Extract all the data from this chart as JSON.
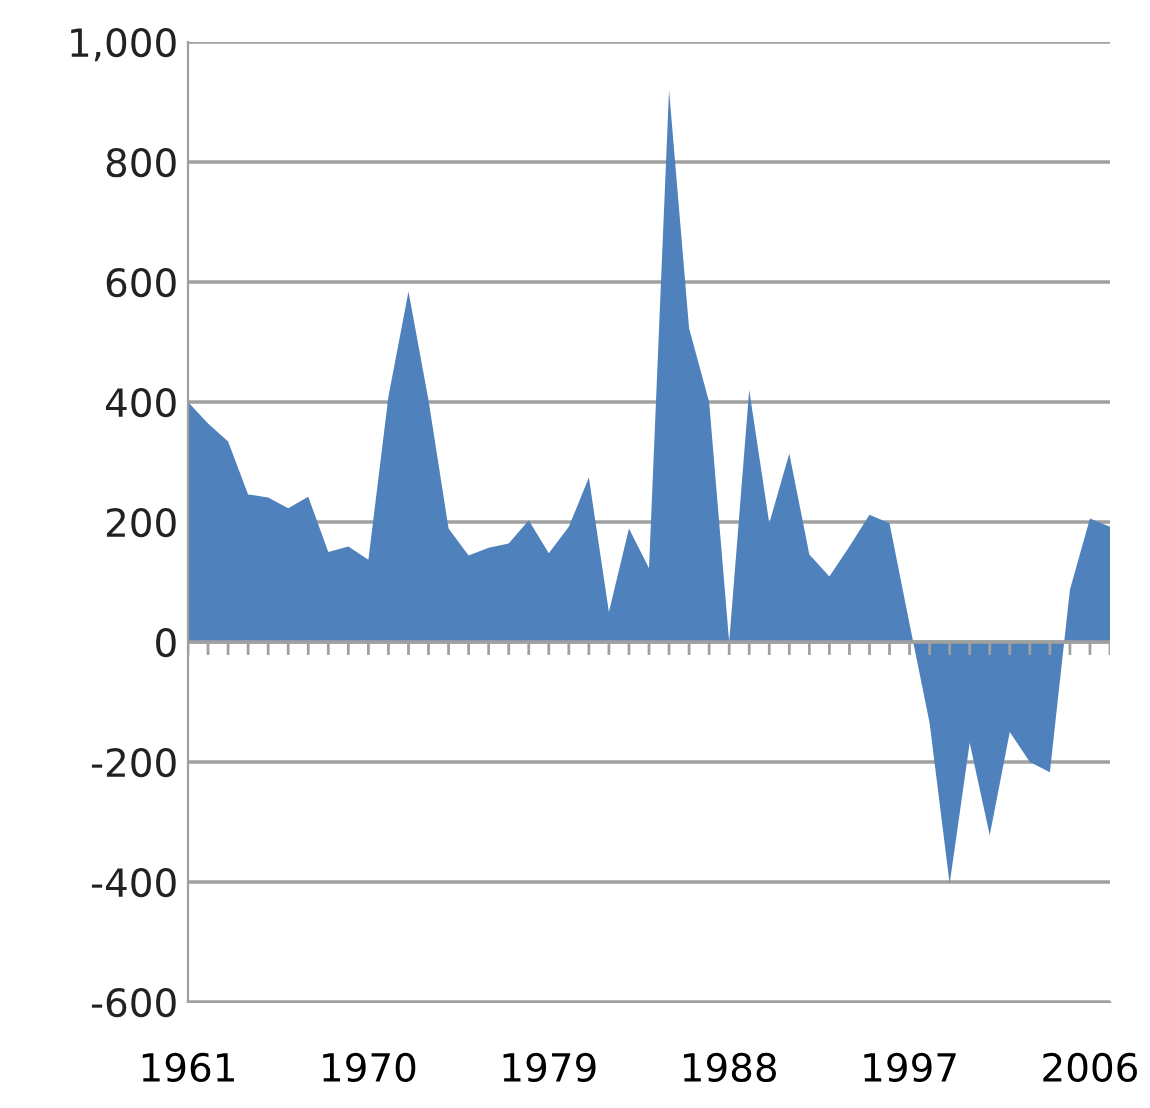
{
  "chart_data": {
    "type": "area",
    "categories": [
      "1961",
      null,
      null,
      null,
      null,
      null,
      null,
      null,
      null,
      "1970",
      null,
      null,
      null,
      null,
      null,
      null,
      null,
      null,
      "1979",
      null,
      null,
      null,
      null,
      null,
      null,
      null,
      null,
      "1988",
      null,
      null,
      null,
      null,
      null,
      null,
      null,
      null,
      "1997",
      null,
      null,
      null,
      null,
      null,
      null,
      null,
      null,
      "2006",
      null
    ],
    "series": [
      {
        "color": "#4f81bd",
        "values": [
          400,
          364,
          334,
          246,
          241,
          223,
          242,
          150,
          159,
          137,
          409,
          584,
          403,
          189,
          144,
          157,
          164,
          203,
          148,
          192,
          274,
          50,
          189,
          123,
          920,
          523,
          400,
          0,
          420,
          198,
          314,
          146,
          109,
          159,
          212,
          198,
          30,
          -135,
          -403,
          -168,
          -322,
          -150,
          -200,
          -217,
          87,
          206,
          192
        ]
      }
    ],
    "ylim": [
      -600,
      1000
    ],
    "yticks": [
      -600,
      -400,
      -200,
      0,
      200,
      400,
      600,
      800,
      {
        "value": 1000,
        "label": "1,000"
      }
    ],
    "grid": "y"
  }
}
